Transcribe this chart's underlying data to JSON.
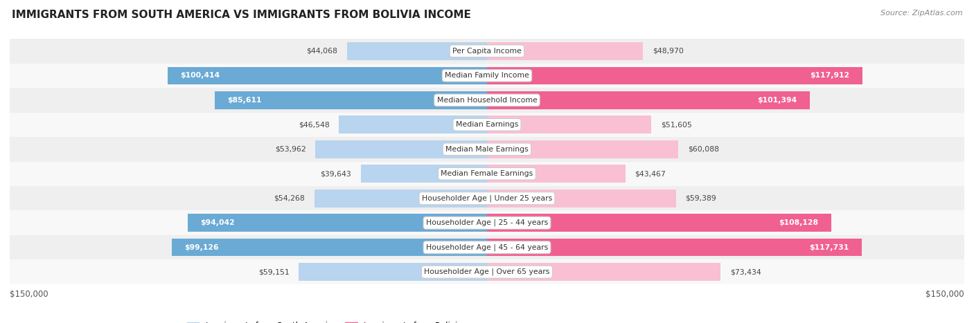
{
  "title": "IMMIGRANTS FROM SOUTH AMERICA VS IMMIGRANTS FROM BOLIVIA INCOME",
  "source": "Source: ZipAtlas.com",
  "categories": [
    "Per Capita Income",
    "Median Family Income",
    "Median Household Income",
    "Median Earnings",
    "Median Male Earnings",
    "Median Female Earnings",
    "Householder Age | Under 25 years",
    "Householder Age | 25 - 44 years",
    "Householder Age | 45 - 64 years",
    "Householder Age | Over 65 years"
  ],
  "south_america_values": [
    44068,
    100414,
    85611,
    46548,
    53962,
    39643,
    54268,
    94042,
    99126,
    59151
  ],
  "bolivia_values": [
    48970,
    117912,
    101394,
    51605,
    60088,
    43467,
    59389,
    108128,
    117731,
    73434
  ],
  "south_america_labels": [
    "$44,068",
    "$100,414",
    "$85,611",
    "$46,548",
    "$53,962",
    "$39,643",
    "$54,268",
    "$94,042",
    "$99,126",
    "$59,151"
  ],
  "bolivia_labels": [
    "$48,970",
    "$117,912",
    "$101,394",
    "$51,605",
    "$60,088",
    "$43,467",
    "$59,389",
    "$108,128",
    "$117,731",
    "$73,434"
  ],
  "color_south_america_light": "#b8d4ee",
  "color_south_america_dark": "#6aaad4",
  "color_bolivia_light": "#f9c0d4",
  "color_bolivia_dark": "#f06090",
  "max_value": 150000,
  "bar_height": 0.72,
  "row_bg_odd": "#efefef",
  "row_bg_even": "#f8f8f8",
  "legend_south_america": "Immigrants from South America",
  "legend_bolivia": "Immigrants from Bolivia",
  "xlabel_left": "$150,000",
  "xlabel_right": "$150,000",
  "inside_label_threshold_sa": 65000,
  "inside_label_threshold_bo": 75000
}
